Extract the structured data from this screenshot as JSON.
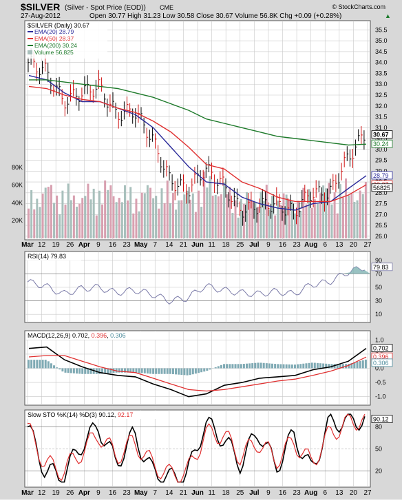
{
  "header": {
    "symbol": "$SILVER",
    "name": "(Silver - Spot Price (EOD))",
    "exchange": "CME",
    "brand": "© StockCharts.com",
    "date": "27-Aug-2012",
    "quote": "Open 30.77  High 31.23  Low 30.58  Close 30.67  Volume 56.8K  Chg +0.09 (+0.28%)",
    "quote_arrow": "▲"
  },
  "colors": {
    "bg_panel": "#ffffff",
    "outer": "#d8d8d8",
    "grid": "#c8c8c8",
    "up_bar": "#000000",
    "down_bar": "#d01010",
    "ema20": "#2a2a9a",
    "ema50": "#e03030",
    "ema200": "#1d7a2a",
    "vol_up": "#a8c0bc",
    "vol_down": "#d8a0b0",
    "rsi_line": "#7a7aa8",
    "rsi_fill": "#7fb3b3",
    "macd": "#000000",
    "macd_signal": "#e03030",
    "macd_hist": "#7faab4",
    "sto_k": "#000000",
    "sto_d": "#e03030",
    "tag_bg": "#ffffff"
  },
  "chart_data": [
    {
      "type": "line",
      "title": "$SILVER (Daily) 30.67",
      "x": [
        "Mar 1",
        "Mar 12",
        "Mar 19",
        "Mar 26",
        "Apr 9",
        "Apr 16",
        "Apr 23",
        "May 7",
        "May 14",
        "May 21",
        "Jun 11",
        "Jun 18",
        "Jun 25",
        "Jul 9",
        "Jul 16",
        "Jul 23",
        "Aug 6",
        "Aug 13",
        "Aug 20",
        "Aug 27"
      ],
      "x_tick_labels": [
        "Mar",
        "12",
        "19",
        "26",
        "Apr",
        "9",
        "16",
        "23",
        "May",
        "7",
        "14",
        "21",
        "Jun",
        "11",
        "18",
        "25",
        "Jul",
        "9",
        "16",
        "23",
        "Aug",
        "6",
        "13",
        "20",
        "27"
      ],
      "ohlc_close": [
        34.0,
        33.6,
        32.2,
        32.6,
        32.9,
        31.6,
        31.8,
        30.5,
        28.6,
        28.1,
        29.1,
        28.4,
        27.2,
        27.4,
        27.5,
        27.1,
        28.0,
        27.9,
        29.5,
        30.67
      ],
      "series": [
        {
          "name": "EMA(20) 28.79",
          "values": [
            33.4,
            33.2,
            32.6,
            32.2,
            32.2,
            31.9,
            31.6,
            31.0,
            30.1,
            29.2,
            28.5,
            28.4,
            27.8,
            27.5,
            27.3,
            27.2,
            27.5,
            27.6,
            28.2,
            28.79
          ]
        },
        {
          "name": "EMA(50) 28.37",
          "values": [
            32.9,
            32.8,
            32.5,
            32.3,
            32.2,
            31.9,
            31.7,
            31.3,
            30.8,
            30.1,
            29.3,
            29.1,
            28.5,
            28.2,
            27.8,
            27.6,
            27.6,
            27.6,
            27.9,
            28.37
          ]
        },
        {
          "name": "EMA(200) 30.24",
          "values": [
            33.2,
            33.2,
            33.1,
            33.0,
            32.9,
            32.8,
            32.6,
            32.4,
            32.1,
            31.8,
            31.4,
            31.2,
            31.0,
            30.8,
            30.6,
            30.5,
            30.4,
            30.3,
            30.2,
            30.24
          ]
        },
        {
          "name": "Volume 56,825",
          "values": [
            48000,
            60000,
            55000,
            52000,
            62000,
            58000,
            52000,
            60000,
            56000,
            50000,
            70000,
            60000,
            45000,
            55000,
            50000,
            48000,
            54000,
            62000,
            60000,
            56825
          ]
        }
      ],
      "y_ticks": [
        "35.5",
        "35.0",
        "34.5",
        "34.0",
        "33.5",
        "33.0",
        "32.5",
        "32.0",
        "31.5",
        "31.0",
        "30.5",
        "30.0",
        "29.5",
        "29.0",
        "28.5",
        "28.0",
        "27.5",
        "27.0",
        "26.5",
        "26.0"
      ],
      "vol_ticks": [
        "80K",
        "60K",
        "40K",
        "20K"
      ],
      "price_tags": [
        "30.67",
        "30.24",
        "28.79",
        "28.37",
        "56825"
      ],
      "ylim": [
        25.9,
        35.8
      ]
    },
    {
      "type": "line",
      "title": "RSI(14) 79.83",
      "series": [
        {
          "name": "RSI(14)",
          "values": [
            58,
            52,
            40,
            48,
            50,
            42,
            46,
            40,
            30,
            34,
            52,
            46,
            42,
            40,
            44,
            40,
            54,
            58,
            72,
            79.83
          ]
        }
      ],
      "y_ticks": [
        "90",
        "70",
        "50",
        "30",
        "10"
      ],
      "tag": "79.83",
      "ylim": [
        0,
        100
      ]
    },
    {
      "type": "line",
      "title": "MACD(12,26,9) 0.702, 0.396, 0.306",
      "series": [
        {
          "name": "0.702",
          "values": [
            0.7,
            0.75,
            0.3,
            0.05,
            -0.15,
            -0.25,
            -0.3,
            -0.55,
            -0.75,
            -1.0,
            -0.9,
            -0.6,
            -0.5,
            -0.35,
            -0.3,
            -0.25,
            -0.05,
            0.05,
            0.25,
            0.702
          ]
        },
        {
          "name": "0.396",
          "values": [
            0.4,
            0.45,
            0.45,
            0.25,
            0.05,
            -0.1,
            -0.15,
            -0.35,
            -0.55,
            -0.75,
            -0.8,
            -0.75,
            -0.65,
            -0.55,
            -0.45,
            -0.38,
            -0.25,
            -0.1,
            0.1,
            0.396
          ]
        },
        {
          "name": "0.306",
          "values": [
            0.3,
            0.3,
            -0.15,
            -0.2,
            -0.2,
            -0.15,
            -0.15,
            -0.2,
            -0.2,
            -0.25,
            -0.1,
            0.15,
            0.15,
            0.2,
            0.15,
            0.13,
            0.2,
            0.15,
            0.15,
            0.306
          ]
        }
      ],
      "y_ticks": [
        "1.0",
        "0.5",
        "0.0",
        "-0.5",
        "-1.0"
      ],
      "tags": [
        "0.702",
        "0.396",
        "0.306"
      ],
      "ylim": [
        -1.25,
        1.25
      ]
    },
    {
      "type": "line",
      "title": "Slow STO %K(14) %D(3) 90.12, 92.17",
      "series": [
        {
          "name": "%K(14) 90.12",
          "values": [
            80,
            20,
            12,
            55,
            80,
            30,
            70,
            20,
            10,
            15,
            85,
            65,
            30,
            75,
            25,
            70,
            20,
            85,
            88,
            90.12
          ]
        },
        {
          "name": "%D(3) 92.17",
          "values": [
            78,
            30,
            20,
            45,
            70,
            40,
            60,
            30,
            15,
            18,
            70,
            70,
            40,
            60,
            35,
            60,
            30,
            70,
            85,
            92.17
          ]
        }
      ],
      "y_ticks": [
        "80",
        "50",
        "20"
      ],
      "tag": "90.12",
      "ylim": [
        0,
        100
      ]
    }
  ]
}
